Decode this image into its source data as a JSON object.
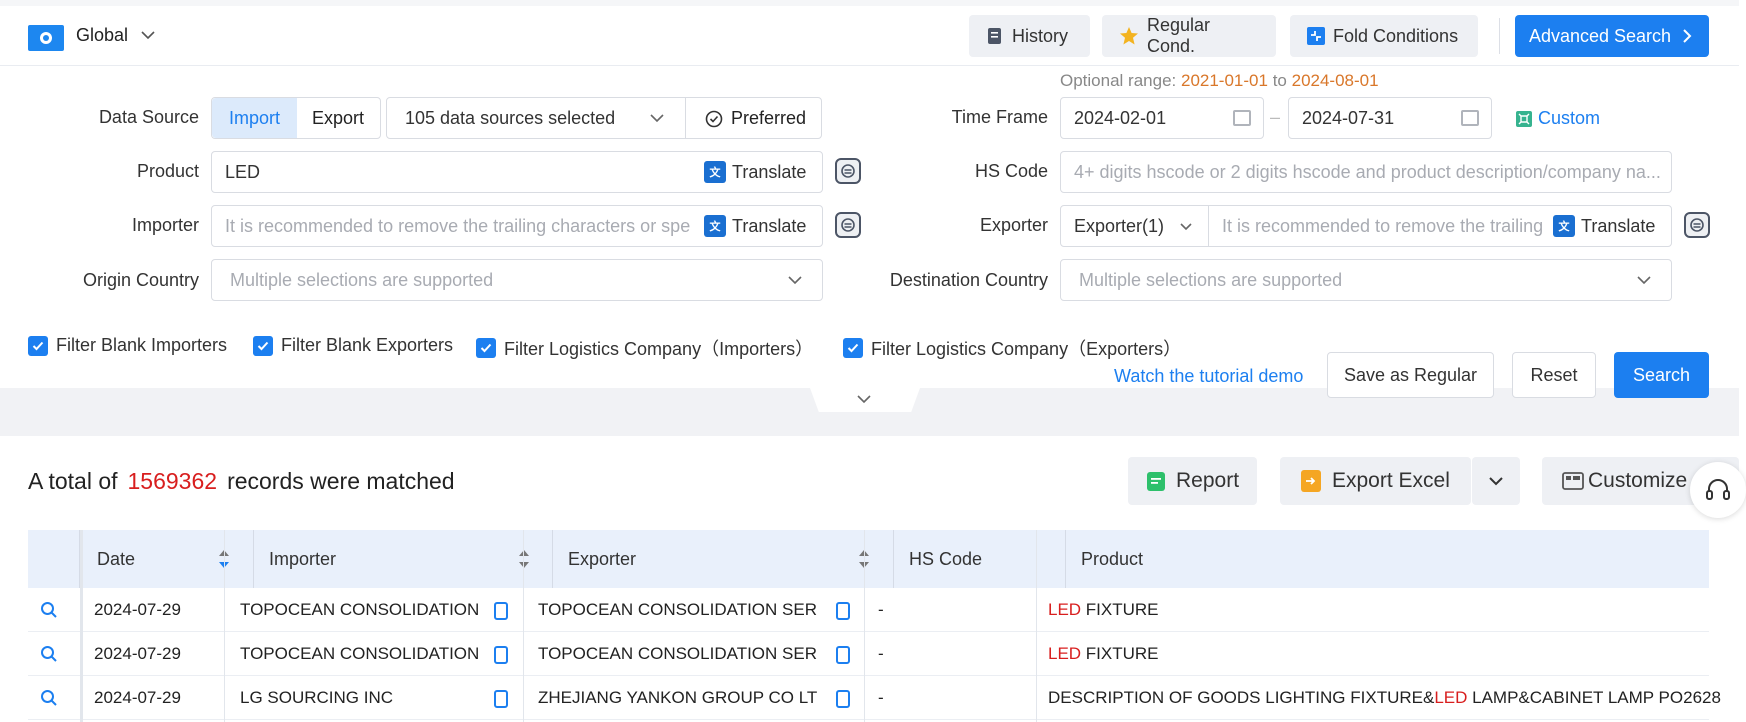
{
  "topbar": {
    "region": "Global",
    "buttons": {
      "history": "History",
      "regular": "Regular Cond.",
      "fold": "Fold Conditions"
    },
    "advanced": "Advanced Search"
  },
  "form": {
    "data_source_label": "Data Source",
    "import_label": "Import",
    "export_label": "Export",
    "sources_selected": "105 data sources selected",
    "preferred": "Preferred",
    "optional_range_prefix": "Optional range:",
    "optional_start": "2021-01-01",
    "optional_to": "to",
    "optional_end": "2024-08-01",
    "time_frame_label": "Time Frame",
    "time_start": "2024-02-01",
    "time_sep": "–",
    "time_end": "2024-07-31",
    "custom": "Custom",
    "product_label": "Product",
    "product_value": "LED",
    "translate": "Translate",
    "hs_label": "HS Code",
    "hs_placeholder": "4+ digits hscode or 2 digits hscode and product description/company na...",
    "importer_label": "Importer",
    "importer_placeholder": "It is recommended to remove the trailing characters or spe",
    "exporter_label": "Exporter",
    "exporter_select": "Exporter(1)",
    "exporter_placeholder": "It is recommended to remove the trailing",
    "origin_label": "Origin Country",
    "origin_placeholder": "Multiple selections are supported",
    "dest_label": "Destination Country",
    "dest_placeholder": "Multiple selections are supported"
  },
  "filters": [
    "Filter Blank Importers",
    "Filter Blank Exporters",
    "Filter Logistics Company（Importers）",
    "Filter Logistics Company（Exporters）"
  ],
  "actions": {
    "watch": "Watch the tutorial demo",
    "save": "Save as Regular",
    "reset": "Reset",
    "search": "Search"
  },
  "results": {
    "prefix": "A total of",
    "count": "1569362",
    "suffix": "records were matched",
    "report": "Report",
    "export_excel": "Export Excel",
    "customize": "Customize"
  },
  "table": {
    "headers": {
      "date": "Date",
      "importer": "Importer",
      "exporter": "Exporter",
      "hs": "HS Code",
      "product": "Product"
    },
    "rows": [
      {
        "date": "2024-07-29",
        "importer": "TOPOCEAN CONSOLIDATION",
        "exporter": "TOPOCEAN CONSOLIDATION SER",
        "hs": "-",
        "pre": "",
        "hl": "LED",
        "post": " FIXTURE"
      },
      {
        "date": "2024-07-29",
        "importer": "TOPOCEAN CONSOLIDATION",
        "exporter": "TOPOCEAN CONSOLIDATION SER",
        "hs": "-",
        "pre": "",
        "hl": "LED",
        "post": " FIXTURE"
      },
      {
        "date": "2024-07-29",
        "importer": "LG SOURCING INC",
        "exporter": "ZHEJIANG YANKON GROUP CO LT",
        "hs": "-",
        "pre": "DESCRIPTION OF GOODS LIGHTING FIXTURE&",
        "hl": "LED",
        "post": " LAMP&CABINET LAMP PO2628"
      }
    ]
  }
}
